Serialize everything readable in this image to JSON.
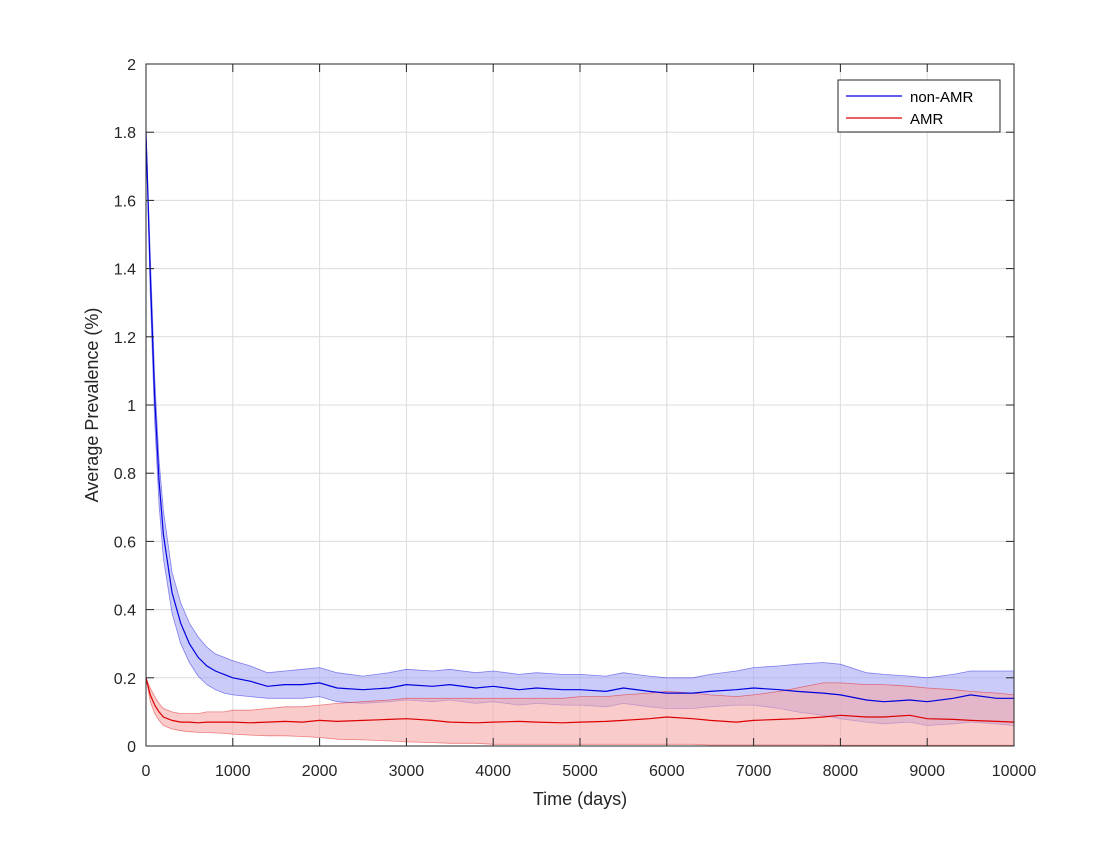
{
  "chart_data": {
    "type": "line",
    "title": "",
    "xlabel": "Time (days)",
    "ylabel": "Average Prevalence (%)",
    "xlim": [
      0,
      10000
    ],
    "ylim": [
      0,
      2
    ],
    "grid": true,
    "legend_position": "top-right",
    "x_ticks": [
      0,
      1000,
      2000,
      3000,
      4000,
      5000,
      6000,
      7000,
      8000,
      9000,
      10000
    ],
    "x_tick_labels": [
      "0",
      "1000",
      "2000",
      "3000",
      "4000",
      "5000",
      "6000",
      "7000",
      "8000",
      "9000",
      "10000"
    ],
    "y_ticks": [
      0,
      0.2,
      0.4,
      0.6,
      0.8,
      1,
      1.2,
      1.4,
      1.6,
      1.8,
      2
    ],
    "y_tick_labels": [
      "0",
      "0.2",
      "0.4",
      "0.6",
      "0.8",
      "1",
      "1.2",
      "1.4",
      "1.6",
      "1.8",
      "2"
    ],
    "x": [
      0,
      50,
      100,
      150,
      200,
      300,
      400,
      500,
      600,
      700,
      800,
      900,
      1000,
      1200,
      1400,
      1600,
      1800,
      2000,
      2200,
      2500,
      2800,
      3000,
      3300,
      3500,
      3800,
      4000,
      4300,
      4500,
      4800,
      5000,
      5300,
      5500,
      5800,
      6000,
      6300,
      6500,
      6800,
      7000,
      7300,
      7500,
      7800,
      8000,
      8300,
      8500,
      8800,
      9000,
      9300,
      9500,
      9800,
      10000
    ],
    "series": [
      {
        "name": "non-AMR",
        "color": "#0000dd",
        "fill_color": "#a8a8f5",
        "values": [
          1.8,
          1.38,
          1.02,
          0.78,
          0.62,
          0.45,
          0.36,
          0.3,
          0.26,
          0.235,
          0.22,
          0.21,
          0.2,
          0.19,
          0.175,
          0.18,
          0.18,
          0.185,
          0.17,
          0.165,
          0.17,
          0.18,
          0.175,
          0.18,
          0.17,
          0.175,
          0.165,
          0.17,
          0.165,
          0.165,
          0.16,
          0.17,
          0.16,
          0.155,
          0.155,
          0.16,
          0.165,
          0.17,
          0.165,
          0.16,
          0.155,
          0.15,
          0.135,
          0.13,
          0.135,
          0.13,
          0.14,
          0.15,
          0.14,
          0.14
        ],
        "lower": [
          1.8,
          1.32,
          0.95,
          0.71,
          0.55,
          0.39,
          0.3,
          0.245,
          0.205,
          0.18,
          0.165,
          0.155,
          0.15,
          0.145,
          0.14,
          0.14,
          0.14,
          0.145,
          0.13,
          0.125,
          0.13,
          0.135,
          0.13,
          0.135,
          0.125,
          0.13,
          0.12,
          0.125,
          0.12,
          0.12,
          0.115,
          0.125,
          0.115,
          0.11,
          0.11,
          0.115,
          0.12,
          0.12,
          0.11,
          0.1,
          0.09,
          0.08,
          0.07,
          0.065,
          0.07,
          0.06,
          0.065,
          0.07,
          0.065,
          0.06
        ],
        "upper": [
          1.8,
          1.44,
          1.08,
          0.84,
          0.69,
          0.51,
          0.42,
          0.36,
          0.32,
          0.29,
          0.27,
          0.26,
          0.25,
          0.235,
          0.215,
          0.22,
          0.225,
          0.23,
          0.215,
          0.205,
          0.215,
          0.225,
          0.22,
          0.225,
          0.215,
          0.22,
          0.21,
          0.215,
          0.21,
          0.21,
          0.205,
          0.215,
          0.205,
          0.2,
          0.2,
          0.21,
          0.22,
          0.23,
          0.235,
          0.24,
          0.245,
          0.24,
          0.215,
          0.21,
          0.205,
          0.2,
          0.21,
          0.22,
          0.22,
          0.22
        ]
      },
      {
        "name": "AMR",
        "color": "#dd0000",
        "fill_color": "#f5a8a8",
        "values": [
          0.2,
          0.15,
          0.12,
          0.1,
          0.085,
          0.075,
          0.07,
          0.07,
          0.068,
          0.07,
          0.07,
          0.07,
          0.07,
          0.068,
          0.07,
          0.072,
          0.07,
          0.075,
          0.072,
          0.075,
          0.078,
          0.08,
          0.075,
          0.07,
          0.068,
          0.07,
          0.072,
          0.07,
          0.068,
          0.07,
          0.072,
          0.075,
          0.08,
          0.085,
          0.08,
          0.075,
          0.07,
          0.075,
          0.078,
          0.08,
          0.085,
          0.09,
          0.085,
          0.085,
          0.09,
          0.08,
          0.078,
          0.075,
          0.072,
          0.07
        ],
        "lower": [
          0.2,
          0.13,
          0.095,
          0.075,
          0.06,
          0.05,
          0.045,
          0.042,
          0.04,
          0.04,
          0.038,
          0.037,
          0.035,
          0.032,
          0.03,
          0.03,
          0.028,
          0.025,
          0.02,
          0.018,
          0.015,
          0.012,
          0.01,
          0.008,
          0.008,
          0.005,
          0.005,
          0.005,
          0.005,
          0.005,
          0.005,
          0.005,
          0.005,
          0.005,
          0.005,
          0.003,
          0.003,
          0.003,
          0.003,
          0.003,
          0.003,
          0.002,
          0.002,
          0.002,
          0.002,
          0.002,
          0.002,
          0.002,
          0.002,
          0.002
        ],
        "upper": [
          0.2,
          0.17,
          0.145,
          0.125,
          0.11,
          0.1,
          0.095,
          0.095,
          0.095,
          0.1,
          0.1,
          0.1,
          0.105,
          0.105,
          0.11,
          0.115,
          0.115,
          0.12,
          0.125,
          0.13,
          0.135,
          0.14,
          0.14,
          0.14,
          0.14,
          0.14,
          0.14,
          0.14,
          0.14,
          0.145,
          0.145,
          0.15,
          0.155,
          0.16,
          0.155,
          0.15,
          0.145,
          0.15,
          0.16,
          0.17,
          0.185,
          0.185,
          0.18,
          0.18,
          0.175,
          0.17,
          0.165,
          0.16,
          0.155,
          0.15
        ]
      }
    ]
  }
}
